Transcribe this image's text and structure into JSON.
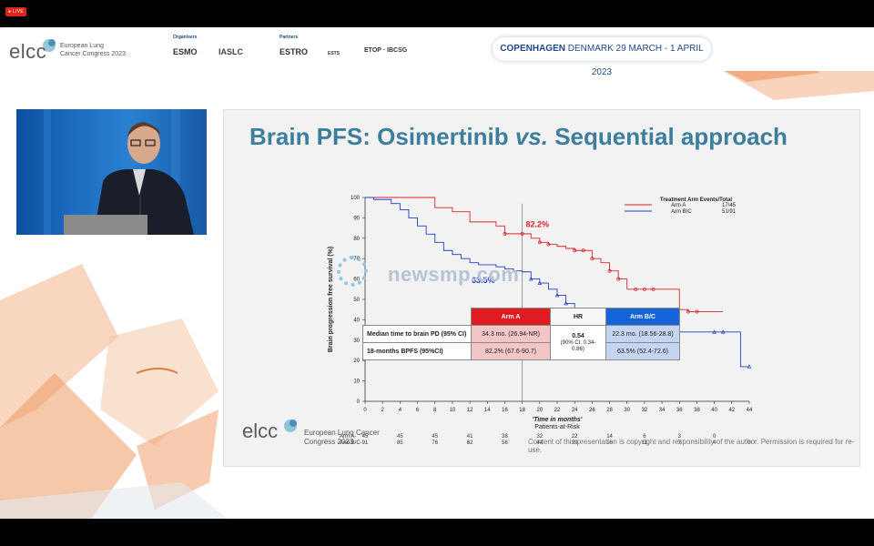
{
  "stream": {
    "live_badge": "● LIVE"
  },
  "header": {
    "logo_text": "elcc",
    "logo_sub": "European Lung Cancer Congress 2023",
    "organisers_label": "Organisers",
    "organisers": [
      "ESMO",
      "IASLC"
    ],
    "partners_label": "Partners",
    "partners": [
      "ESTRO",
      "ESTS",
      "ETOP · IBCSG"
    ],
    "banner_city": "COPENHAGEN",
    "banner_rest": " DENMARK 29 MARCH - 1 APRIL 2023"
  },
  "slide": {
    "title_pre": "Brain PFS: Osimertinib ",
    "title_vs": "vs.",
    "title_post": " Sequential approach",
    "watermark": "newsmp.com",
    "footer_logo": "elcc",
    "footer_sub": "European Lung Cancer Congress 2023",
    "copyright": "Content of this presentation is copyright and responsibility of the author. Permission is required for re-use.",
    "table": {
      "headers": [
        "Arm A",
        "HR",
        "Arm B/C"
      ],
      "row1_label": "Median time  to brain PD (95% CI)",
      "row1_a": "34.3 mo. (26.94-NR)",
      "row1_hr_value": "0.54",
      "row1_hr_ci": "(90% CI: 0.34-0.86)",
      "row1_bc": "22.3 mo. (18.56-28.8)",
      "row2_label": "18-months BPFS (95%CI)",
      "row2_a": "82.2% (67.6-90.7)",
      "row2_bc": "63.5% (52.4-72.6)"
    }
  },
  "chart_data": {
    "type": "line",
    "title": "",
    "ylabel": "Brain progression free survival (%)",
    "xlabel": "Time in months",
    "xlim": [
      0,
      44
    ],
    "ylim": [
      0,
      100
    ],
    "xticks": [
      0,
      2,
      4,
      6,
      8,
      10,
      12,
      14,
      16,
      18,
      20,
      22,
      24,
      26,
      28,
      30,
      32,
      34,
      36,
      38,
      40,
      42,
      44
    ],
    "yticks": [
      0,
      10,
      20,
      30,
      40,
      50,
      60,
      70,
      80,
      90,
      100
    ],
    "legend_title": "Treatment Arm   Events/Total",
    "colors": {
      "arm_a": "#d8242a",
      "arm_bc": "#2040c0",
      "cut": "#888888"
    },
    "series": [
      {
        "name": "Arm A",
        "events": "17/45",
        "x": [
          0,
          6,
          8,
          10,
          12,
          15,
          16,
          18,
          19,
          20,
          21,
          22,
          23,
          24,
          26,
          27,
          28,
          29,
          30,
          33,
          34,
          36,
          37,
          40,
          41
        ],
        "y": [
          100,
          100,
          95,
          93,
          88,
          86,
          82.2,
          82.2,
          80,
          78,
          77,
          76,
          75,
          74,
          70,
          68,
          64,
          60,
          55,
          55,
          55,
          45,
          44,
          44,
          44
        ],
        "censored_x": [
          16,
          18,
          20,
          21,
          24,
          25,
          26,
          28,
          29,
          31,
          32,
          33,
          37,
          38
        ]
      },
      {
        "name": "Arm B/C",
        "events": "51/91",
        "x": [
          0,
          1,
          3,
          4,
          5,
          6,
          7,
          8,
          9,
          10,
          11,
          12,
          13,
          14,
          15,
          16,
          17,
          18,
          19,
          20,
          21,
          22,
          23,
          24,
          25,
          26,
          27,
          28,
          30,
          32,
          34,
          36,
          38,
          40,
          42,
          43,
          44
        ],
        "y": [
          100,
          99,
          97,
          94,
          90,
          86,
          82,
          78,
          74,
          72,
          70,
          68,
          67,
          67,
          66,
          65,
          64,
          63.5,
          60,
          58,
          55,
          52,
          48,
          45,
          42,
          40,
          38,
          35,
          34,
          34,
          34,
          34,
          34,
          34,
          34,
          17,
          17
        ],
        "censored_x": [
          19,
          20,
          22,
          23,
          25,
          26,
          27,
          28,
          29,
          31,
          32,
          33,
          40,
          41,
          44
        ]
      }
    ],
    "annotations": [
      {
        "text": "82.2%",
        "series": "Arm A"
      },
      {
        "text": "63.5%",
        "series": "Arm B/C"
      }
    ],
    "risk_table": {
      "title": "Patients-at-Risk",
      "x": [
        0,
        4,
        8,
        12,
        16,
        20,
        24,
        28,
        32,
        36,
        40,
        44
      ],
      "rows": [
        {
          "label": "Arm A-",
          "values": [
            "45",
            "45",
            "45",
            "41",
            "38",
            "32",
            "22",
            "14",
            "6",
            "3",
            "0",
            ""
          ]
        },
        {
          "label": "Arm B/C-",
          "values": [
            "91",
            "85",
            "76",
            "62",
            "56",
            "44",
            "29",
            "16",
            "11",
            "7",
            "4",
            "0"
          ]
        }
      ]
    }
  }
}
